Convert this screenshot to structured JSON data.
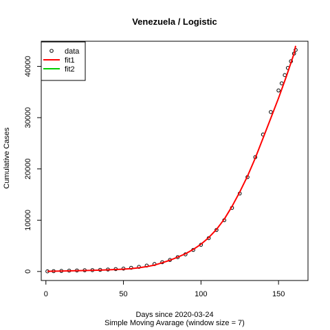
{
  "chart_data": {
    "type": "scatter",
    "title": "Venezuela / Logistic",
    "xlabel": "Days since 2020-03-24",
    "sublabel": "Simple Moving Avarage (window size = 7)",
    "ylabel": "Cumulative Cases",
    "xlim": [
      -3,
      169
    ],
    "ylim": [
      -1760,
      44900
    ],
    "x_ticks": [
      0,
      50,
      100,
      150
    ],
    "y_ticks": [
      0,
      10000,
      20000,
      30000,
      40000
    ],
    "grid": false,
    "legend_position": "top-left",
    "legend": [
      {
        "label": "data",
        "kind": "point",
        "color": "#000000"
      },
      {
        "label": "fit1",
        "kind": "line",
        "color": "#ff0000"
      },
      {
        "label": "fit2",
        "kind": "line",
        "color": "#00cd00"
      }
    ],
    "series": [
      {
        "name": "data",
        "kind": "points",
        "color": "#000000",
        "x": [
          1,
          5,
          10,
          15,
          20,
          25,
          30,
          35,
          40,
          45,
          50,
          55,
          60,
          65,
          70,
          75,
          80,
          85,
          90,
          95,
          100,
          105,
          110,
          115,
          120,
          125,
          130,
          135,
          140,
          145,
          150,
          152,
          154,
          156,
          158,
          160,
          161
        ],
        "y": [
          20,
          60,
          110,
          160,
          200,
          240,
          270,
          320,
          380,
          460,
          560,
          720,
          900,
          1150,
          1450,
          1800,
          2250,
          2800,
          3350,
          4200,
          5200,
          6500,
          8100,
          10000,
          12400,
          15200,
          18400,
          22300,
          26700,
          31100,
          35300,
          36700,
          38300,
          39700,
          41000,
          42500,
          43200
        ]
      },
      {
        "name": "fit1",
        "kind": "line",
        "color": "#ff0000",
        "x": [
          1,
          10,
          20,
          30,
          40,
          50,
          55,
          60,
          65,
          70,
          75,
          80,
          85,
          90,
          95,
          100,
          105,
          110,
          115,
          120,
          125,
          130,
          135,
          140,
          145,
          150,
          155,
          160,
          161
        ],
        "y": [
          30,
          90,
          150,
          220,
          320,
          450,
          560,
          720,
          950,
          1250,
          1700,
          2200,
          2800,
          3450,
          4300,
          5300,
          6600,
          8200,
          10200,
          12700,
          15500,
          18600,
          22100,
          26000,
          29900,
          33800,
          38000,
          42500,
          44000
        ]
      }
    ]
  }
}
